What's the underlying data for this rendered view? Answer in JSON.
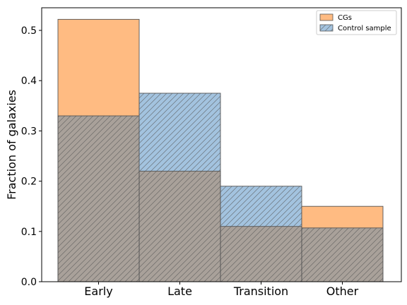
{
  "chart_data": {
    "type": "bar",
    "categories": [
      "Early",
      "Late",
      "Transition",
      "Other"
    ],
    "series": [
      {
        "name": "CGs",
        "values": [
          0.522,
          0.22,
          0.11,
          0.15
        ],
        "color": "#ffbb82",
        "hatch": false
      },
      {
        "name": "Control sample",
        "values": [
          0.33,
          0.375,
          0.19,
          0.107
        ],
        "color": "#a3c3df",
        "hatch": true
      }
    ],
    "overlap_color": "#a9a19a",
    "xlabel": "",
    "ylabel": "Fraction of galaxies",
    "ylim": [
      0,
      0.545
    ],
    "yticks": [
      "0.0",
      "0.1",
      "0.2",
      "0.3",
      "0.4",
      "0.5"
    ],
    "legend_position": "top-right",
    "grid": false
  }
}
